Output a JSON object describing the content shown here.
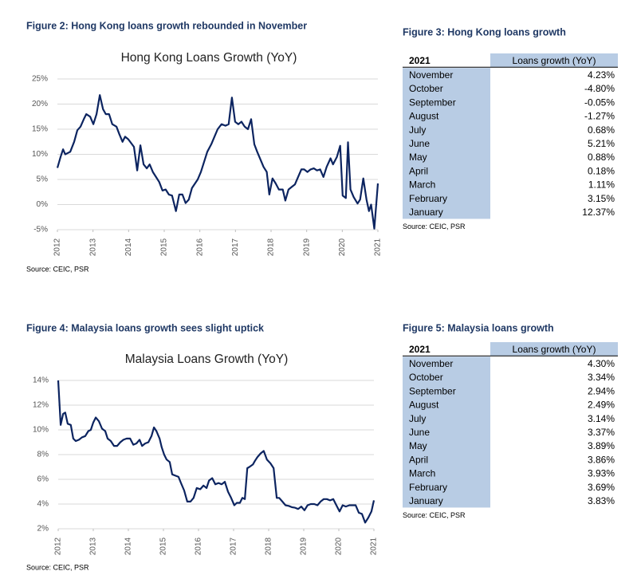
{
  "chart_data": [
    {
      "type": "line",
      "caption": "Figure 2: Hong Kong loans growth rebounded in November",
      "title": "Hong Kong Loans Growth (YoY)",
      "source": "Source: CEIC, PSR",
      "color": "#0c2460",
      "grid": true,
      "xlim": [
        2012,
        2021
      ],
      "xticks": [
        2012,
        2013,
        2014,
        2015,
        2016,
        2017,
        2018,
        2019,
        2020,
        2021
      ],
      "ylim": [
        -5,
        25
      ],
      "yticks": [
        {
          "value": 25,
          "label": "25%"
        },
        {
          "value": 20,
          "label": "20%"
        },
        {
          "value": 15,
          "label": "15%"
        },
        {
          "value": 10,
          "label": "10%"
        },
        {
          "value": 5,
          "label": "5%"
        },
        {
          "value": 0,
          "label": "0%"
        },
        {
          "value": -5,
          "label": "-5%"
        }
      ],
      "x": [
        2012.0,
        2012.09,
        2012.16,
        2012.22,
        2012.36,
        2012.47,
        2012.56,
        2012.65,
        2012.74,
        2012.81,
        2012.92,
        2013.01,
        2013.1,
        2013.19,
        2013.28,
        2013.36,
        2013.45,
        2013.54,
        2013.66,
        2013.74,
        2013.83,
        2013.9,
        2013.99,
        2014.15,
        2014.24,
        2014.33,
        2014.42,
        2014.51,
        2014.59,
        2014.68,
        2014.77,
        2014.86,
        2014.95,
        2015.04,
        2015.13,
        2015.22,
        2015.33,
        2015.42,
        2015.51,
        2015.6,
        2015.69,
        2015.78,
        2015.94,
        2016.03,
        2016.12,
        2016.21,
        2016.32,
        2016.41,
        2016.5,
        2016.61,
        2016.72,
        2016.81,
        2016.9,
        2016.99,
        2017.08,
        2017.17,
        2017.26,
        2017.35,
        2017.44,
        2017.53,
        2017.61,
        2017.7,
        2017.79,
        2017.88,
        2017.95,
        2018.04,
        2018.13,
        2018.22,
        2018.33,
        2018.4,
        2018.49,
        2018.58,
        2018.67,
        2018.76,
        2018.85,
        2018.93,
        2019.02,
        2019.11,
        2019.2,
        2019.29,
        2019.38,
        2019.47,
        2019.56,
        2019.67,
        2019.74,
        2019.85,
        2019.94,
        2020.01,
        2020.1,
        2020.16,
        2020.23,
        2020.32,
        2020.43,
        2020.5,
        2020.59,
        2020.68,
        2020.75,
        2020.81,
        2020.9,
        2021.0
      ],
      "values": [
        7.3,
        9.5,
        11,
        10,
        10.5,
        12.5,
        14.8,
        15.5,
        17,
        18,
        17.5,
        16,
        18,
        21.8,
        19,
        18,
        18,
        16,
        15.5,
        14,
        12.5,
        13.5,
        13,
        11.5,
        6.8,
        11.8,
        8,
        7.2,
        8,
        6.5,
        5.5,
        4.5,
        2.8,
        3,
        2,
        1.8,
        -1.3,
        2,
        2,
        0.3,
        1,
        3.3,
        5,
        6.5,
        8.5,
        10.5,
        12,
        13.5,
        15,
        16,
        15.7,
        16,
        21.3,
        16.5,
        16,
        16.5,
        15.5,
        15,
        17,
        12,
        10.5,
        9,
        7.5,
        6.5,
        2,
        5.2,
        4.2,
        3,
        3,
        0.8,
        3,
        3.5,
        4,
        5.5,
        7,
        7,
        6.5,
        7,
        7.2,
        6.8,
        7,
        5.5,
        7.5,
        9.2,
        8,
        9.5,
        11.7,
        1.8,
        1.3,
        12.4,
        3,
        1.5,
        0.2,
        1,
        5.2,
        1,
        -1.3,
        0,
        -4.8,
        4.2
      ]
    },
    {
      "type": "line",
      "caption": "Figure 4: Malaysia loans growth sees slight uptick",
      "title": "Malaysia Loans Growth (YoY)",
      "source": "Source: CEIC, PSR",
      "color": "#0c2460",
      "grid": true,
      "xlim": [
        2012,
        2021
      ],
      "xticks": [
        2012,
        2013,
        2014,
        2015,
        2016,
        2017,
        2018,
        2019,
        2020,
        2021
      ],
      "ylim": [
        2,
        14
      ],
      "yticks": [
        {
          "value": 14,
          "label": "14%"
        },
        {
          "value": 12,
          "label": "12%"
        },
        {
          "value": 10,
          "label": "10%"
        },
        {
          "value": 8,
          "label": "8%"
        },
        {
          "value": 6,
          "label": "6%"
        },
        {
          "value": 4,
          "label": "4%"
        },
        {
          "value": 2,
          "label": "2%"
        }
      ],
      "x": [
        2012.0,
        2012.07,
        2012.14,
        2012.2,
        2012.27,
        2012.36,
        2012.43,
        2012.5,
        2012.59,
        2012.68,
        2012.77,
        2012.86,
        2012.93,
        2013.0,
        2013.07,
        2013.16,
        2013.25,
        2013.34,
        2013.41,
        2013.5,
        2013.59,
        2013.68,
        2013.77,
        2013.86,
        2013.95,
        2014.05,
        2014.14,
        2014.23,
        2014.32,
        2014.39,
        2014.48,
        2014.57,
        2014.66,
        2014.73,
        2014.8,
        2014.89,
        2014.95,
        2015.02,
        2015.09,
        2015.18,
        2015.25,
        2015.34,
        2015.43,
        2015.5,
        2015.59,
        2015.68,
        2015.77,
        2015.86,
        2015.95,
        2016.05,
        2016.14,
        2016.23,
        2016.3,
        2016.39,
        2016.48,
        2016.57,
        2016.66,
        2016.75,
        2016.84,
        2016.93,
        2017.02,
        2017.09,
        2017.18,
        2017.25,
        2017.32,
        2017.39,
        2017.45,
        2017.55,
        2017.61,
        2017.68,
        2017.77,
        2017.86,
        2017.95,
        2018.05,
        2018.14,
        2018.23,
        2018.3,
        2018.39,
        2018.48,
        2018.57,
        2018.66,
        2018.75,
        2018.84,
        2018.93,
        2019.02,
        2019.11,
        2019.2,
        2019.3,
        2019.39,
        2019.48,
        2019.57,
        2019.66,
        2019.75,
        2019.84,
        2019.93,
        2020.02,
        2020.11,
        2020.2,
        2020.3,
        2020.39,
        2020.48,
        2020.57,
        2020.66,
        2020.75,
        2020.84,
        2020.93,
        2021.0
      ],
      "values": [
        14,
        10.4,
        11.3,
        11.4,
        10.5,
        10.4,
        9.3,
        9.1,
        9.2,
        9.4,
        9.5,
        9.9,
        10,
        10.6,
        11,
        10.7,
        10.1,
        9.9,
        9.3,
        9.1,
        8.7,
        8.7,
        9,
        9.2,
        9.3,
        9.3,
        8.8,
        8.9,
        9.2,
        8.7,
        8.9,
        9,
        9.5,
        10.2,
        9.9,
        9.3,
        8.6,
        8,
        7.6,
        7.4,
        6.4,
        6.3,
        6.2,
        5.7,
        5.1,
        4.2,
        4.2,
        4.5,
        5.3,
        5.2,
        5.5,
        5.3,
        5.9,
        6.1,
        5.6,
        5.7,
        5.6,
        5.8,
        5,
        4.5,
        3.9,
        4.1,
        4.1,
        4.5,
        4.4,
        6.9,
        7,
        7.2,
        7.5,
        7.8,
        8.1,
        8.3,
        7.6,
        7.3,
        6.9,
        4.5,
        4.5,
        4.2,
        3.9,
        3.85,
        3.75,
        3.7,
        3.6,
        3.8,
        3.5,
        3.9,
        4,
        4,
        3.9,
        4.2,
        4.4,
        4.4,
        4.3,
        4.4,
        3.9,
        3.4,
        3.9,
        3.8,
        3.9,
        3.9,
        3.9,
        3.3,
        3.2,
        2.5,
        2.9,
        3.4,
        4.3
      ]
    }
  ],
  "tables": [
    {
      "caption": "Figure 3: Hong Kong loans growth",
      "columns": [
        "2021",
        "Loans growth (YoY)"
      ],
      "source": "Source: CEIC, PSR",
      "rows": [
        [
          "November",
          "4.23%"
        ],
        [
          "October",
          "-4.80%"
        ],
        [
          "September",
          "-0.05%"
        ],
        [
          "August",
          "-1.27%"
        ],
        [
          "July",
          "0.68%"
        ],
        [
          "June",
          "5.21%"
        ],
        [
          "May",
          "0.88%"
        ],
        [
          "April",
          "0.18%"
        ],
        [
          "March",
          "1.11%"
        ],
        [
          "February",
          "3.15%"
        ],
        [
          "January",
          "12.37%"
        ]
      ]
    },
    {
      "caption": "Figure 5: Malaysia loans growth",
      "columns": [
        "2021",
        "Loans growth (YoY)"
      ],
      "source": "Source: CEIC, PSR",
      "rows": [
        [
          "November",
          "4.30%"
        ],
        [
          "October",
          "3.34%"
        ],
        [
          "September",
          "2.94%"
        ],
        [
          "August",
          "2.49%"
        ],
        [
          "July",
          "3.14%"
        ],
        [
          "June",
          "3.37%"
        ],
        [
          "May",
          "3.89%"
        ],
        [
          "April",
          "3.86%"
        ],
        [
          "March",
          "3.93%"
        ],
        [
          "February",
          "3.69%"
        ],
        [
          "January",
          "3.83%"
        ]
      ]
    }
  ]
}
